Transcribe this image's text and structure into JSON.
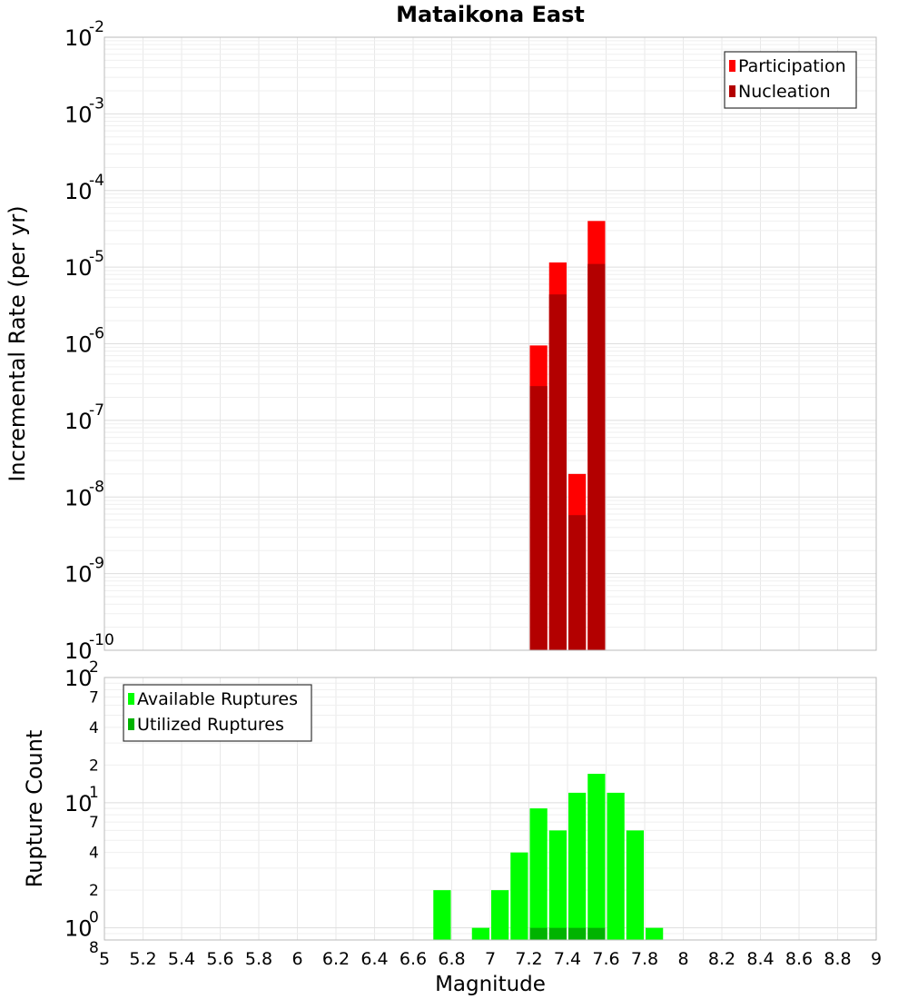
{
  "chart_data": [
    {
      "type": "bar",
      "title": "Mataikona East",
      "ylabel": "Incremental Rate (per yr)",
      "xlabel": "",
      "yscale": "log",
      "ylim": [
        1e-10,
        0.01
      ],
      "xlim": [
        5,
        9
      ],
      "bar_width": 0.1,
      "grid": true,
      "legend_position": "top-right",
      "y_ticks": [
        {
          "value": 0.01,
          "base": "10",
          "exp": "-2"
        },
        {
          "value": 0.001,
          "base": "10",
          "exp": "-3"
        },
        {
          "value": 0.0001,
          "base": "10",
          "exp": "-4"
        },
        {
          "value": 1e-05,
          "base": "10",
          "exp": "-5"
        },
        {
          "value": 1e-06,
          "base": "10",
          "exp": "-6"
        },
        {
          "value": 1e-07,
          "base": "10",
          "exp": "-7"
        },
        {
          "value": 1e-08,
          "base": "10",
          "exp": "-8"
        },
        {
          "value": 1e-09,
          "base": "10",
          "exp": "-9"
        },
        {
          "value": 1e-10,
          "base": "10",
          "exp": "-10"
        }
      ],
      "series": [
        {
          "name": "Participation",
          "color": "#ff0000",
          "x": [
            7.25,
            7.35,
            7.45,
            7.55
          ],
          "values": [
            9.5e-07,
            1.15e-05,
            2e-08,
            4e-05
          ]
        },
        {
          "name": "Nucleation",
          "color": "#b30000",
          "x": [
            7.25,
            7.35,
            7.45,
            7.55
          ],
          "values": [
            2.8e-07,
            4.4e-06,
            5.8e-09,
            1.1e-05
          ]
        }
      ]
    },
    {
      "type": "bar",
      "title": "",
      "ylabel": "Rupture Count",
      "xlabel": "Magnitude",
      "yscale": "log",
      "ylim": [
        0.8,
        100
      ],
      "xlim": [
        5,
        9
      ],
      "bar_width": 0.1,
      "grid": true,
      "legend_position": "top-left",
      "y_ticks": [
        {
          "value": 100,
          "base": "10",
          "exp": "2"
        },
        {
          "value": 70,
          "base": "",
          "exp": "7"
        },
        {
          "value": 40,
          "base": "",
          "exp": "4"
        },
        {
          "value": 20,
          "base": "",
          "exp": "2"
        },
        {
          "value": 10,
          "base": "10",
          "exp": "1"
        },
        {
          "value": 7,
          "base": "",
          "exp": "7"
        },
        {
          "value": 4,
          "base": "",
          "exp": "4"
        },
        {
          "value": 2,
          "base": "",
          "exp": "2"
        },
        {
          "value": 1,
          "base": "10",
          "exp": "0"
        },
        {
          "value": 0.8,
          "base": "",
          "exp": "8"
        }
      ],
      "x_ticks": [
        "5",
        "5.2",
        "5.4",
        "5.6",
        "5.8",
        "6",
        "6.2",
        "6.4",
        "6.6",
        "6.8",
        "7",
        "7.2",
        "7.4",
        "7.6",
        "7.8",
        "8",
        "8.2",
        "8.4",
        "8.6",
        "8.8",
        "9"
      ],
      "series": [
        {
          "name": "Available Ruptures",
          "color": "#00ff00",
          "x": [
            6.75,
            6.95,
            7.05,
            7.15,
            7.25,
            7.35,
            7.45,
            7.55,
            7.65,
            7.75,
            7.85
          ],
          "values": [
            2,
            1,
            2,
            4,
            9,
            6,
            12,
            17,
            12,
            6,
            1
          ]
        },
        {
          "name": "Utilized Ruptures",
          "color": "#00b300",
          "x": [
            7.25,
            7.35,
            7.45,
            7.55
          ],
          "values": [
            1,
            1,
            1,
            1
          ]
        }
      ]
    }
  ]
}
